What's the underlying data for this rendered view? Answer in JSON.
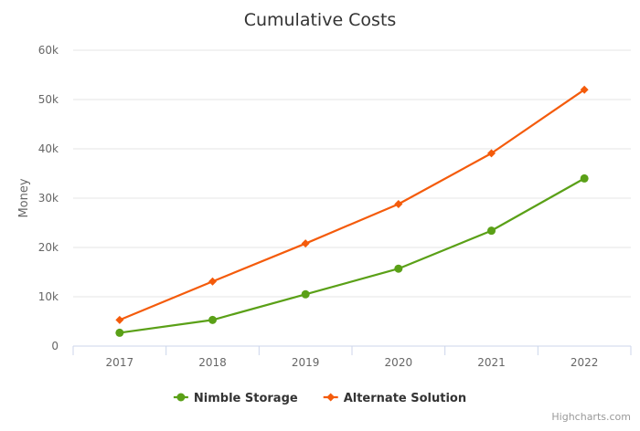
{
  "chart_data": {
    "type": "line",
    "title": "Cumulative Costs",
    "xlabel": "",
    "ylabel": "Money",
    "categories": [
      "2017",
      "2018",
      "2019",
      "2020",
      "2021",
      "2022"
    ],
    "ylim": [
      0,
      60000
    ],
    "yticks": [
      0,
      10000,
      20000,
      30000,
      40000,
      50000,
      60000
    ],
    "ytick_labels": [
      "0",
      "10k",
      "20k",
      "30k",
      "40k",
      "50k",
      "60k"
    ],
    "grid": "horizontal",
    "legend_position": "bottom-center",
    "series": [
      {
        "name": "Nimble Storage",
        "color": "#5aa017",
        "marker": "circle",
        "values": [
          2700,
          5300,
          10500,
          15700,
          23400,
          34000
        ]
      },
      {
        "name": "Alternate Solution",
        "color": "#f45b0b",
        "marker": "diamond",
        "values": [
          5300,
          13100,
          20800,
          28800,
          39100,
          52000
        ]
      }
    ],
    "credits": "Highcharts.com"
  }
}
